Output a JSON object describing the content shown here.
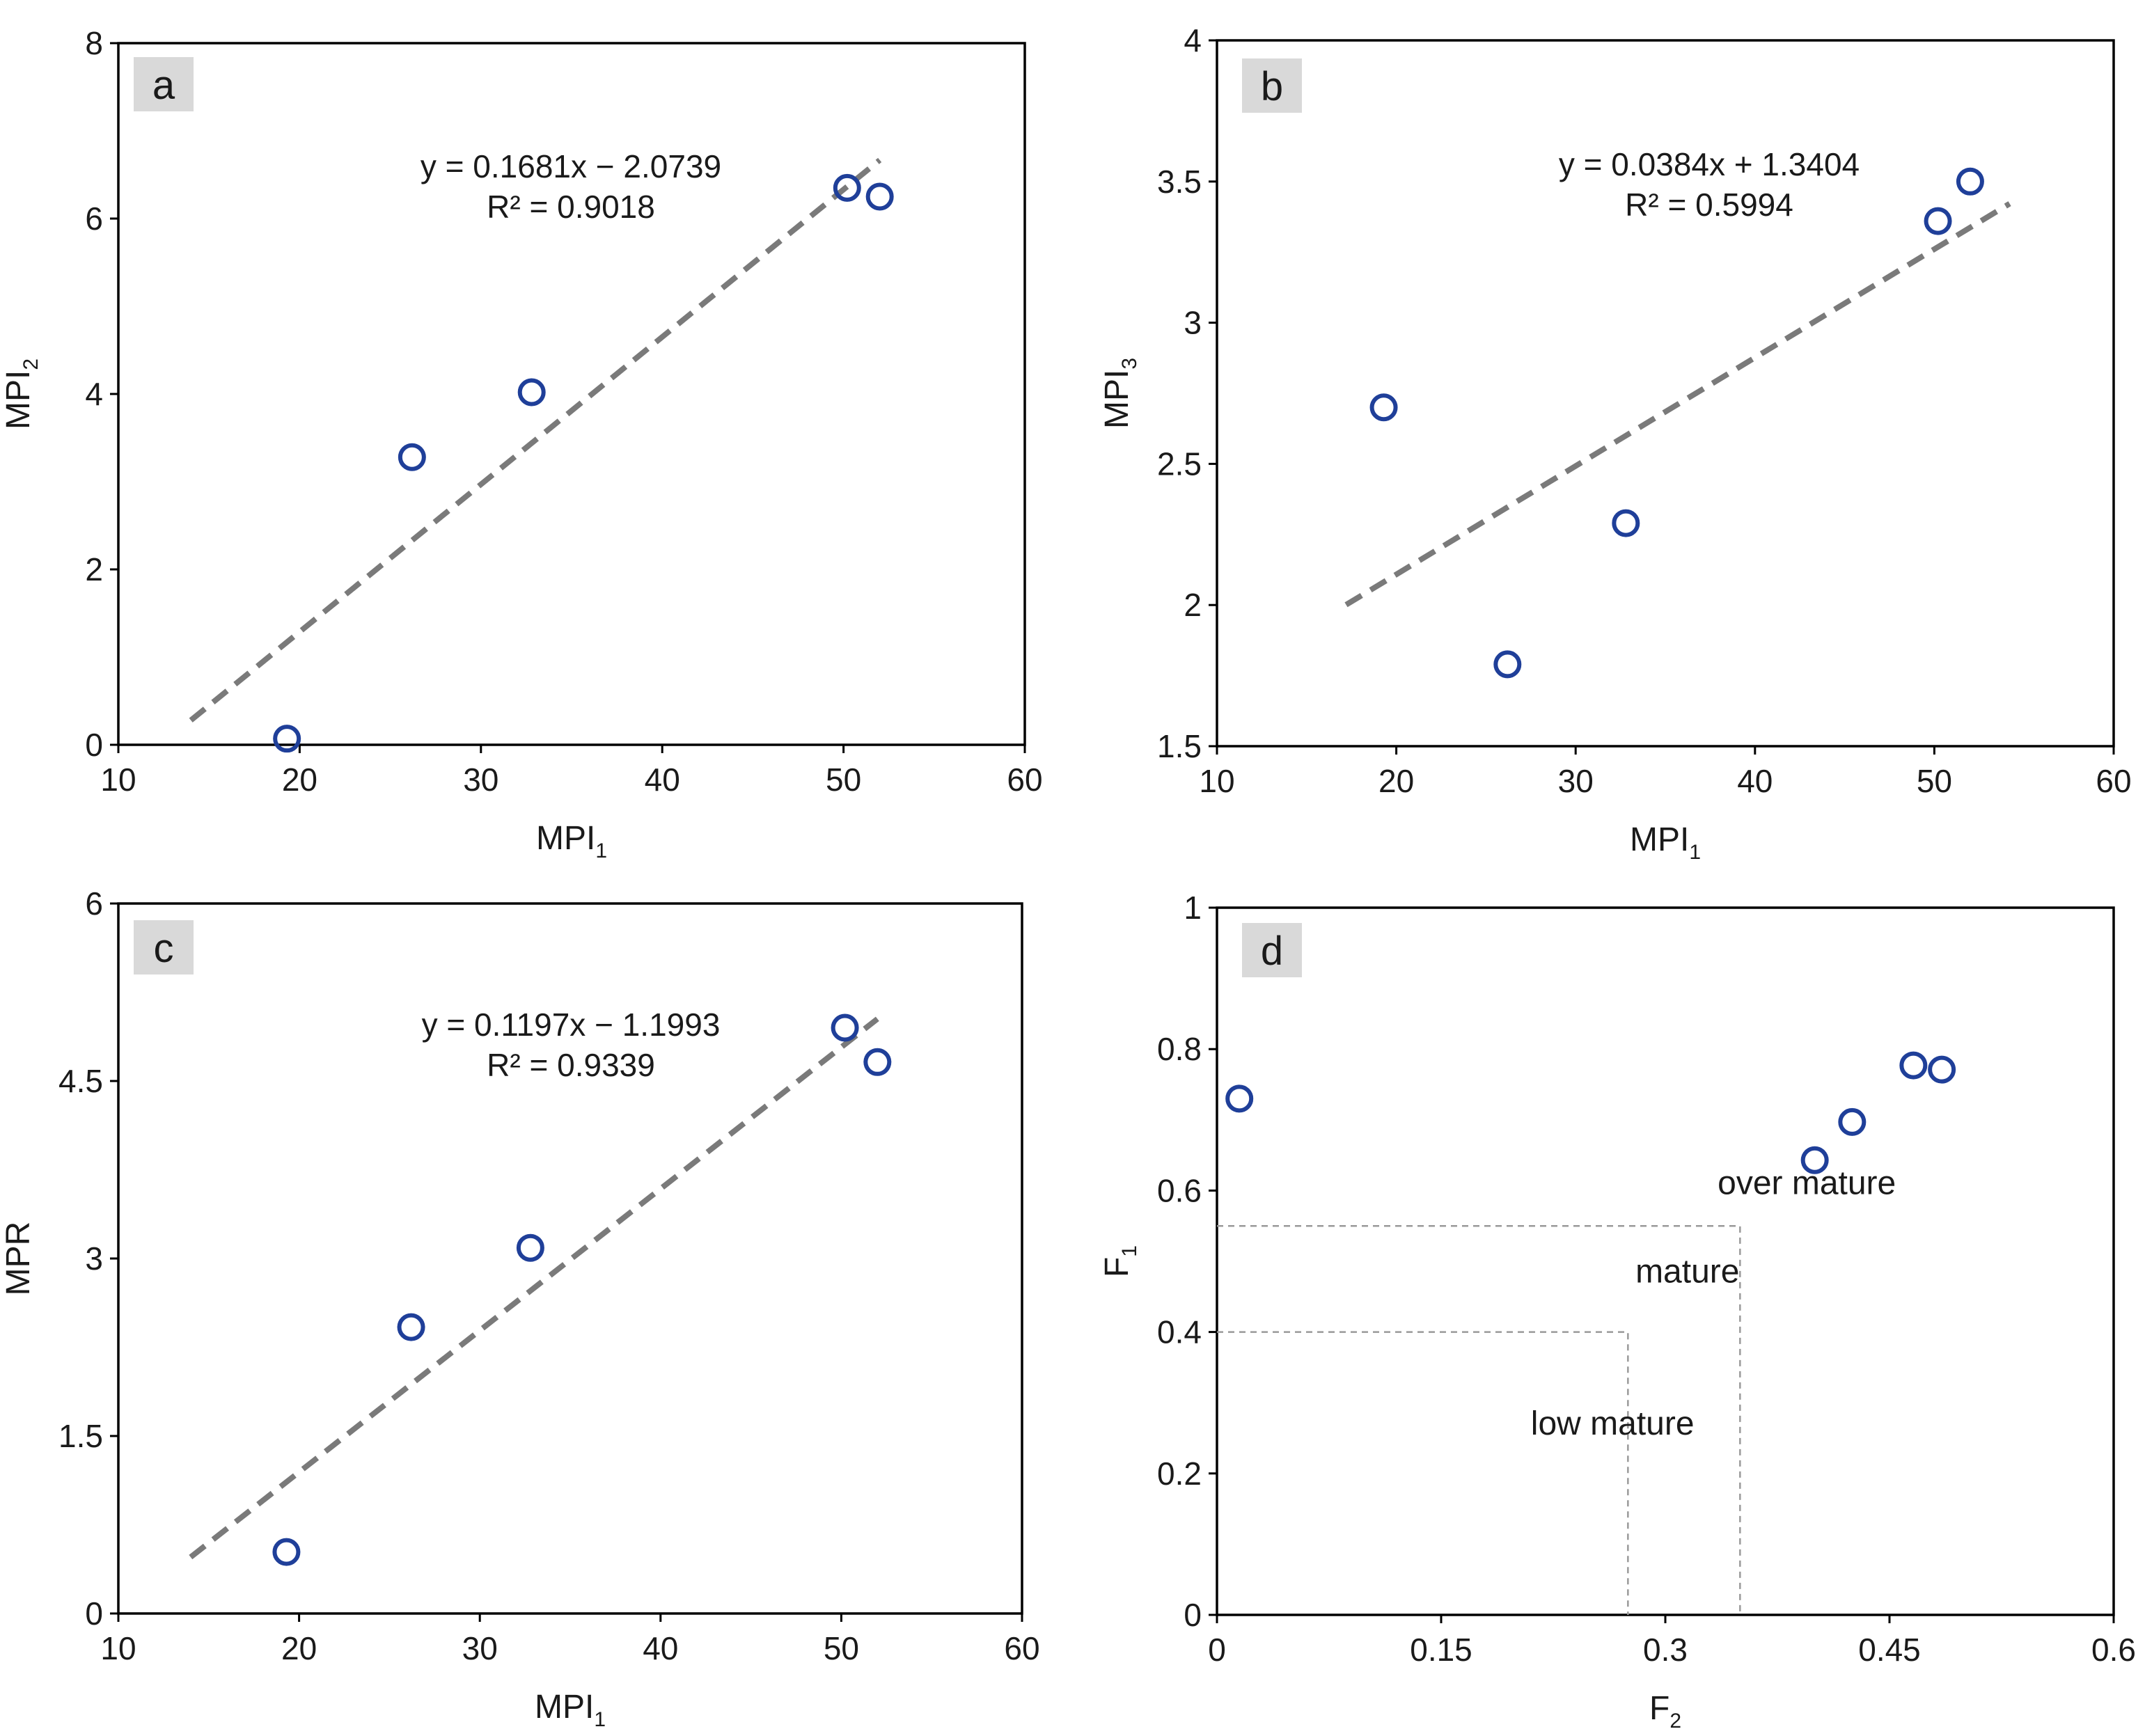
{
  "chart_data": [
    {
      "panel": "a",
      "type": "scatter",
      "xlabel": "MPI",
      "xlabel_sub": "1",
      "ylabel": "MPI",
      "ylabel_sub": "2",
      "xlim": [
        10,
        60
      ],
      "ylim": [
        0,
        8
      ],
      "xticks": [
        10,
        20,
        30,
        40,
        50,
        60
      ],
      "yticks": [
        0,
        2,
        4,
        6,
        8
      ],
      "ytick_labels": [
        "0",
        "2",
        "4",
        "6",
        "8"
      ],
      "points": [
        {
          "x": 19.3,
          "y": 0.07
        },
        {
          "x": 26.2,
          "y": 3.28
        },
        {
          "x": 32.8,
          "y": 4.02
        },
        {
          "x": 50.2,
          "y": 6.35
        },
        {
          "x": 52.0,
          "y": 6.25
        }
      ],
      "trendline": {
        "slope": 0.1681,
        "intercept": -2.0739,
        "x_range": [
          14,
          52
        ]
      },
      "equation": "y = 0.1681x − 2.0739",
      "r2": "R² = 0.9018"
    },
    {
      "panel": "b",
      "type": "scatter",
      "xlabel": "MPI",
      "xlabel_sub": "1",
      "ylabel": "MPI",
      "ylabel_sub": "3",
      "xlim": [
        10,
        60
      ],
      "ylim": [
        1.5,
        4
      ],
      "xticks": [
        10,
        20,
        30,
        40,
        50,
        60
      ],
      "yticks": [
        1.5,
        2,
        2.5,
        3,
        3.5,
        4
      ],
      "ytick_labels": [
        "1.5",
        "2",
        "2.5",
        "3",
        "3.5",
        "4"
      ],
      "points": [
        {
          "x": 19.3,
          "y": 2.7
        },
        {
          "x": 26.2,
          "y": 1.79
        },
        {
          "x": 32.8,
          "y": 2.29
        },
        {
          "x": 50.2,
          "y": 3.36
        },
        {
          "x": 52.0,
          "y": 3.5
        }
      ],
      "trendline": {
        "slope": 0.0384,
        "intercept": 1.3404,
        "x_range": [
          17.2,
          54.2
        ]
      },
      "equation": "y = 0.0384x + 1.3404",
      "r2": "R² = 0.5994"
    },
    {
      "panel": "c",
      "type": "scatter",
      "xlabel": "MPI",
      "xlabel_sub": "1",
      "ylabel": "MPR",
      "ylabel_sub": "",
      "xlim": [
        10,
        60
      ],
      "ylim": [
        0,
        6
      ],
      "xticks": [
        10,
        20,
        30,
        40,
        50,
        60
      ],
      "yticks": [
        0,
        1.5,
        3,
        4.5,
        6
      ],
      "ytick_labels": [
        "0",
        "1.5",
        "3",
        "4.5",
        "6"
      ],
      "points": [
        {
          "x": 19.3,
          "y": 0.52
        },
        {
          "x": 26.2,
          "y": 2.42
        },
        {
          "x": 32.8,
          "y": 3.09
        },
        {
          "x": 50.2,
          "y": 4.95
        },
        {
          "x": 52.0,
          "y": 4.66
        }
      ],
      "trendline": {
        "slope": 0.1197,
        "intercept": -1.1993,
        "x_range": [
          14,
          52
        ]
      },
      "equation": "y = 0.1197x − 1.1993",
      "r2": "R² = 0.9339"
    },
    {
      "panel": "d",
      "type": "scatter",
      "xlabel": "F",
      "xlabel_sub": "2",
      "ylabel": "F",
      "ylabel_sub": "1",
      "xlim": [
        0,
        0.6
      ],
      "ylim": [
        0,
        1
      ],
      "xticks": [
        0,
        0.15,
        0.3,
        0.45,
        0.6
      ],
      "xtick_labels": [
        "0",
        "0.15",
        "0.3",
        "0.45",
        "0.6"
      ],
      "yticks": [
        0,
        0.2,
        0.4,
        0.6,
        0.8,
        1
      ],
      "ytick_labels": [
        "0",
        "0.2",
        "0.4",
        "0.6",
        "0.8",
        "1"
      ],
      "points": [
        {
          "x": 0.015,
          "y": 0.73
        },
        {
          "x": 0.4,
          "y": 0.643
        },
        {
          "x": 0.425,
          "y": 0.697
        },
        {
          "x": 0.466,
          "y": 0.777
        },
        {
          "x": 0.485,
          "y": 0.771
        }
      ],
      "regions": [
        {
          "label": "low mature",
          "x_max": 0.275,
          "y_max": 0.4,
          "label_x": 0.21,
          "label_y": 0.255
        },
        {
          "label": "mature",
          "x_max": 0.35,
          "y_max": 0.55,
          "label_x": 0.28,
          "label_y": 0.47
        },
        {
          "label": "over mature",
          "x_max": null,
          "y_max": null,
          "label_x": 0.335,
          "label_y": 0.595
        }
      ]
    }
  ]
}
